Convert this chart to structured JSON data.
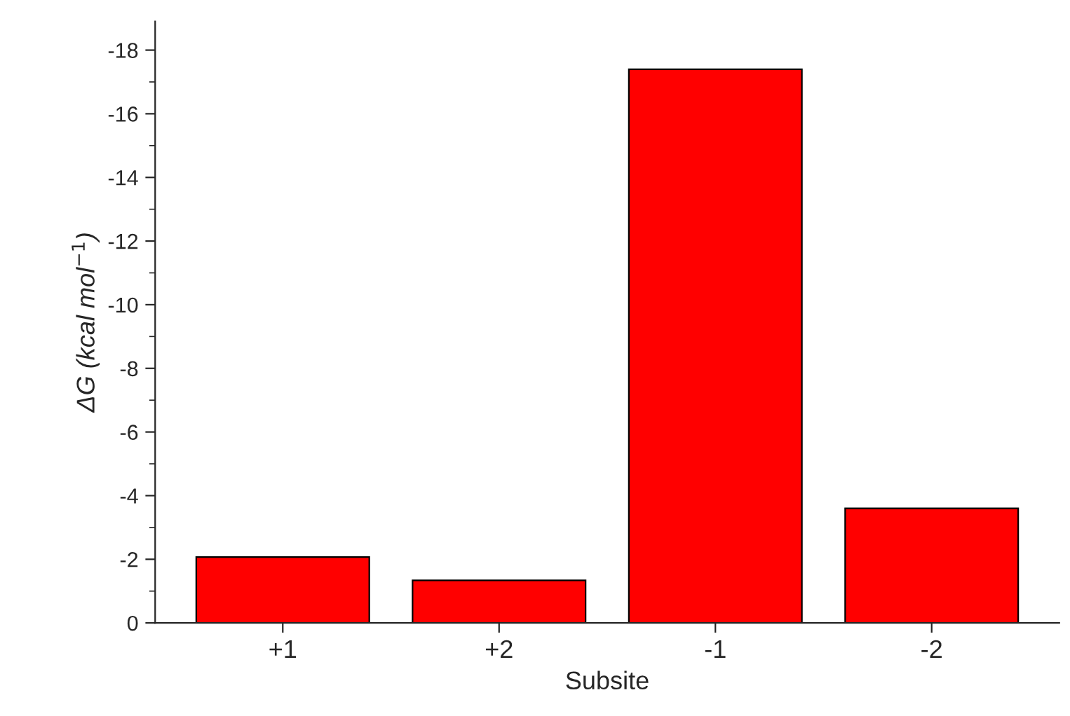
{
  "chart_data": {
    "type": "bar",
    "xlabel": "Subsite",
    "ylabel": "ΔG (kcal mol$^{−1}$)",
    "categories": [
      "+1",
      "+2",
      "-1",
      "-2"
    ],
    "values": [
      -2.07,
      -1.34,
      -17.4,
      -3.6
    ],
    "color": "#ff0000",
    "ylim": [
      0,
      -18.9
    ],
    "yticks": [
      0,
      -2,
      -4,
      -6,
      -8,
      -10,
      -12,
      -14,
      -16,
      -18
    ],
    "grid": false
  }
}
